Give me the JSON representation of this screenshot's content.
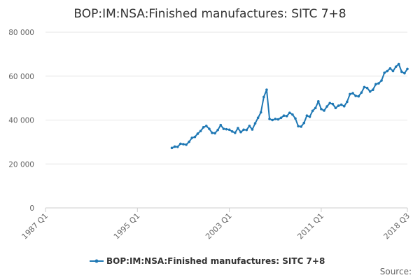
{
  "chart_data": {
    "type": "line",
    "title": "BOP:IM:NSA:Finished manufactures: SITC 7+8",
    "xlabel": "",
    "ylabel": "",
    "ylim": [
      0,
      80000
    ],
    "yticks": [
      "0",
      "20 000",
      "40 000",
      "60 000",
      "80 000"
    ],
    "ytick_values": [
      0,
      20000,
      40000,
      60000,
      80000
    ],
    "xlim": [
      1987.0,
      2018.5
    ],
    "xticks": [
      "1987 Q1",
      "1995 Q1",
      "2003 Q1",
      "2011 Q1",
      "2018 Q3"
    ],
    "xtick_values": [
      1987.0,
      1995.0,
      2003.0,
      2011.0,
      2018.5
    ],
    "grid": true,
    "legend_position": "bottom-center",
    "series": [
      {
        "name": "BOP:IM:NSA:Finished manufactures: SITC 7+8",
        "color": "#1f78b4",
        "points": [
          [
            1998.0,
            27300
          ],
          [
            1998.25,
            27900
          ],
          [
            1998.5,
            27800
          ],
          [
            1998.75,
            29200
          ],
          [
            1999.0,
            29000
          ],
          [
            1999.25,
            28800
          ],
          [
            1999.5,
            30100
          ],
          [
            1999.75,
            31900
          ],
          [
            2000.0,
            32300
          ],
          [
            2000.25,
            33800
          ],
          [
            2000.5,
            35000
          ],
          [
            2000.75,
            36700
          ],
          [
            2001.0,
            37300
          ],
          [
            2001.25,
            36000
          ],
          [
            2001.5,
            34200
          ],
          [
            2001.75,
            34000
          ],
          [
            2002.0,
            35500
          ],
          [
            2002.25,
            37700
          ],
          [
            2002.5,
            36000
          ],
          [
            2002.75,
            35800
          ],
          [
            2003.0,
            35600
          ],
          [
            2003.25,
            34800
          ],
          [
            2003.5,
            34200
          ],
          [
            2003.75,
            36300
          ],
          [
            2004.0,
            34500
          ],
          [
            2004.25,
            35600
          ],
          [
            2004.5,
            35500
          ],
          [
            2004.75,
            37300
          ],
          [
            2005.0,
            35700
          ],
          [
            2005.25,
            38500
          ],
          [
            2005.5,
            41000
          ],
          [
            2005.75,
            43500
          ],
          [
            2006.0,
            50500
          ],
          [
            2006.25,
            53800
          ],
          [
            2006.5,
            40500
          ],
          [
            2006.75,
            40000
          ],
          [
            2007.0,
            40500
          ],
          [
            2007.25,
            40300
          ],
          [
            2007.5,
            41000
          ],
          [
            2007.75,
            42000
          ],
          [
            2008.0,
            41800
          ],
          [
            2008.25,
            43300
          ],
          [
            2008.5,
            42500
          ],
          [
            2008.75,
            40700
          ],
          [
            2009.0,
            37200
          ],
          [
            2009.25,
            37000
          ],
          [
            2009.5,
            38700
          ],
          [
            2009.75,
            42000
          ],
          [
            2010.0,
            41500
          ],
          [
            2010.25,
            44200
          ],
          [
            2010.5,
            45500
          ],
          [
            2010.75,
            48500
          ],
          [
            2011.0,
            45000
          ],
          [
            2011.25,
            44300
          ],
          [
            2011.5,
            46200
          ],
          [
            2011.75,
            47700
          ],
          [
            2012.0,
            47300
          ],
          [
            2012.25,
            45500
          ],
          [
            2012.5,
            46500
          ],
          [
            2012.75,
            47000
          ],
          [
            2013.0,
            46300
          ],
          [
            2013.25,
            48300
          ],
          [
            2013.5,
            51800
          ],
          [
            2013.75,
            52200
          ],
          [
            2014.0,
            51000
          ],
          [
            2014.25,
            50800
          ],
          [
            2014.5,
            52500
          ],
          [
            2014.75,
            55000
          ],
          [
            2015.0,
            54600
          ],
          [
            2015.25,
            53000
          ],
          [
            2015.5,
            53800
          ],
          [
            2015.75,
            56300
          ],
          [
            2016.0,
            56700
          ],
          [
            2016.25,
            58000
          ],
          [
            2016.5,
            61500
          ],
          [
            2016.75,
            62300
          ],
          [
            2017.0,
            63500
          ],
          [
            2017.25,
            62300
          ],
          [
            2017.5,
            64300
          ],
          [
            2017.75,
            65500
          ],
          [
            2018.0,
            62000
          ],
          [
            2018.25,
            61300
          ],
          [
            2018.5,
            63300
          ]
        ]
      }
    ]
  },
  "footer": {
    "source_label": "Source:"
  }
}
